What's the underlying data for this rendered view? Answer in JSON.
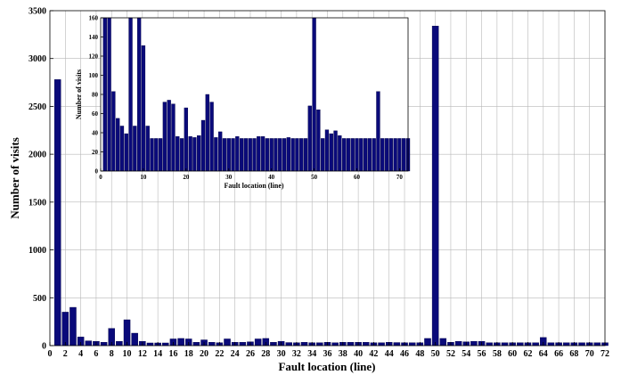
{
  "colors": {
    "bar": "#0a0a7a",
    "bar_edge": "#000044",
    "grid": "#b8b8b8"
  },
  "chart_data": [
    {
      "type": "bar",
      "title": "",
      "xlabel": "Fault location (line)",
      "ylabel": "Number of visits",
      "xlim": [
        0,
        72
      ],
      "ylim": [
        0,
        3500
      ],
      "xticks": [
        0,
        2,
        4,
        6,
        8,
        10,
        12,
        14,
        16,
        18,
        20,
        22,
        24,
        26,
        28,
        30,
        32,
        34,
        36,
        38,
        40,
        42,
        44,
        46,
        48,
        50,
        52,
        54,
        56,
        58,
        60,
        62,
        64,
        66,
        68,
        70,
        72
      ],
      "yticks": [
        0,
        500,
        1000,
        1500,
        2000,
        2500,
        3000,
        3500
      ],
      "grid": true,
      "x": [
        1,
        2,
        3,
        4,
        5,
        6,
        7,
        8,
        9,
        10,
        11,
        12,
        13,
        14,
        15,
        16,
        17,
        18,
        19,
        20,
        21,
        22,
        23,
        24,
        25,
        26,
        27,
        28,
        29,
        30,
        31,
        32,
        33,
        34,
        35,
        36,
        37,
        38,
        39,
        40,
        41,
        42,
        43,
        44,
        45,
        46,
        47,
        48,
        49,
        50,
        51,
        52,
        53,
        54,
        55,
        56,
        57,
        58,
        59,
        60,
        61,
        62,
        63,
        64,
        65,
        66,
        67,
        68,
        69,
        70,
        71,
        72
      ],
      "values": [
        2780,
        350,
        400,
        90,
        50,
        45,
        35,
        180,
        45,
        270,
        130,
        45,
        28,
        28,
        28,
        70,
        75,
        70,
        35,
        60,
        35,
        30,
        70,
        35,
        35,
        40,
        70,
        75,
        35,
        45,
        32,
        30,
        35,
        30,
        30,
        35,
        30,
        35,
        35,
        35,
        35,
        30,
        30,
        35,
        32,
        30,
        30,
        30,
        75,
        3340,
        75,
        35,
        45,
        40,
        45,
        45,
        30,
        30,
        30,
        30,
        30,
        30,
        30,
        85,
        30,
        30,
        30,
        30,
        30,
        30,
        30,
        30
      ]
    },
    {
      "type": "bar",
      "title": "",
      "xlabel": "Fault location (line)",
      "ylabel": "Number of visits",
      "xlim": [
        0,
        72
      ],
      "ylim": [
        0,
        160
      ],
      "xticks": [
        0,
        10,
        20,
        30,
        40,
        50,
        60,
        70
      ],
      "yticks": [
        0,
        20,
        40,
        60,
        80,
        100,
        120,
        140,
        160
      ],
      "grid": false,
      "x": [
        1,
        2,
        3,
        4,
        5,
        6,
        7,
        8,
        9,
        10,
        11,
        12,
        13,
        14,
        15,
        16,
        17,
        18,
        19,
        20,
        21,
        22,
        23,
        24,
        25,
        26,
        27,
        28,
        29,
        30,
        31,
        32,
        33,
        34,
        35,
        36,
        37,
        38,
        39,
        40,
        41,
        42,
        43,
        44,
        45,
        46,
        47,
        48,
        49,
        50,
        51,
        52,
        53,
        54,
        55,
        56,
        57,
        58,
        59,
        60,
        61,
        62,
        63,
        64,
        65,
        66,
        67,
        68,
        69,
        70,
        71,
        72
      ],
      "values": [
        160,
        160,
        83,
        55,
        47,
        39,
        160,
        47,
        160,
        131,
        47,
        34,
        34,
        34,
        72,
        74,
        70,
        36,
        34,
        66,
        36,
        35,
        37,
        53,
        80,
        72,
        35,
        41,
        34,
        34,
        34,
        36,
        34,
        34,
        34,
        34,
        36,
        36,
        34,
        34,
        34,
        34,
        34,
        35,
        34,
        34,
        34,
        34,
        68,
        160,
        64,
        34,
        43,
        39,
        42,
        37,
        34,
        34,
        34,
        34,
        34,
        34,
        34,
        34,
        83,
        34,
        34,
        34,
        34,
        34,
        34,
        34
      ]
    }
  ]
}
